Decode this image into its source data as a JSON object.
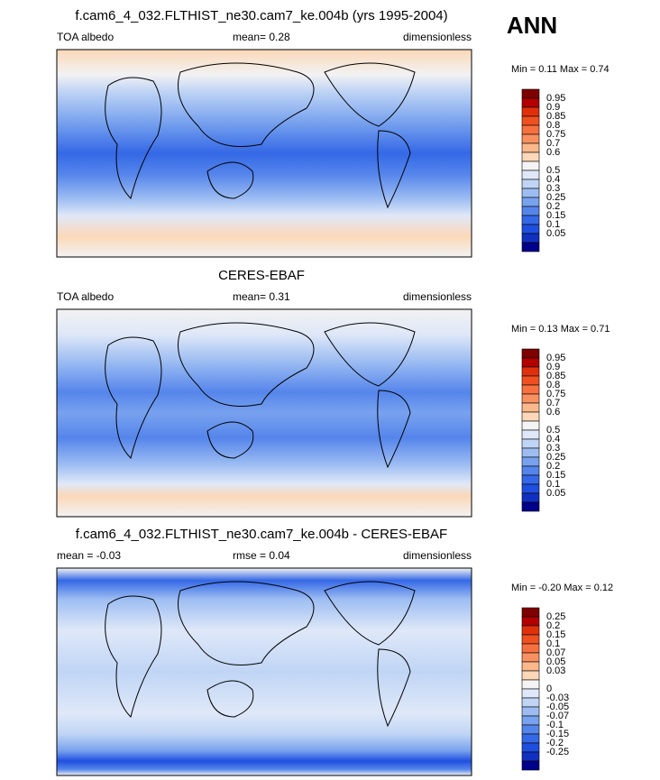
{
  "figure": {
    "season": "ANN",
    "panels": [
      {
        "title": "f.cam6_4_032.FLTHIST_ne30.cam7_ke.004b (yrs 1995-2004)",
        "left": "TOA albedo",
        "center": "mean=  0.28",
        "right": "dimensionless",
        "min_max": "Min =  0.11 Max =  0.74",
        "colorbar": [
          "0.95",
          "0.9",
          "0.85",
          "0.8",
          "0.75",
          "0.7",
          "0.6",
          "0.5",
          "0.4",
          "0.3",
          "0.25",
          "0.2",
          "0.15",
          "0.1",
          "0.05"
        ]
      },
      {
        "title": "CERES-EBAF",
        "left": "TOA albedo",
        "center": "mean=  0.31",
        "right": "dimensionless",
        "min_max": "Min =  0.13 Max =  0.71",
        "colorbar": [
          "0.95",
          "0.9",
          "0.85",
          "0.8",
          "0.75",
          "0.7",
          "0.6",
          "0.5",
          "0.4",
          "0.3",
          "0.25",
          "0.2",
          "0.15",
          "0.1",
          "0.05"
        ]
      },
      {
        "title": "f.cam6_4_032.FLTHIST_ne30.cam7_ke.004b - CERES-EBAF",
        "left": "mean =  -0.03",
        "center": "rmse =  0.04",
        "right": "dimensionless",
        "min_max": "Min =  -0.20 Max =  0.12",
        "colorbar": [
          "0.25",
          "0.2",
          "0.15",
          "0.1",
          "0.07",
          "0.05",
          "0.03",
          "0",
          "-0.03",
          "-0.05",
          "-0.07",
          "-0.1",
          "-0.15",
          "-0.2",
          "-0.25"
        ]
      }
    ]
  }
}
